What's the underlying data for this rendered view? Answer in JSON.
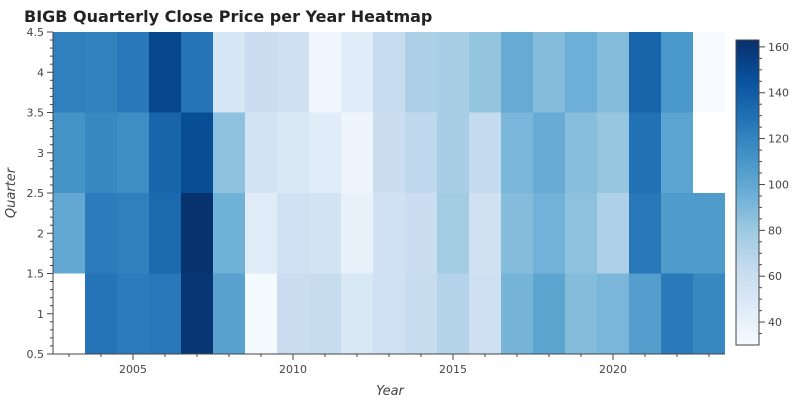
{
  "chart_data": {
    "type": "heatmap",
    "title": "BIGB Quarterly Close Price per Year Heatmap",
    "xlabel": "Year",
    "ylabel": "Quarter",
    "x": [
      2003,
      2004,
      2005,
      2006,
      2007,
      2008,
      2009,
      2010,
      2011,
      2012,
      2013,
      2014,
      2015,
      2016,
      2017,
      2018,
      2019,
      2020,
      2021,
      2022,
      2023
    ],
    "y": [
      1,
      2,
      3,
      4
    ],
    "values": [
      [
        null,
        128,
        124,
        126,
        160,
        104,
        31,
        60,
        62,
        50,
        57,
        62,
        70,
        58,
        93,
        102,
        88,
        92,
        106,
        125,
        118
      ],
      [
        100,
        124,
        122,
        134,
        162,
        95,
        46,
        57,
        55,
        40,
        57,
        60,
        78,
        56,
        88,
        94,
        85,
        73,
        126,
        108,
        108
      ],
      [
        112,
        118,
        115,
        136,
        148,
        85,
        55,
        50,
        45,
        36,
        60,
        66,
        76,
        64,
        92,
        98,
        87,
        82,
        130,
        103,
        null
      ],
      [
        122,
        121,
        126,
        152,
        128,
        52,
        60,
        58,
        35,
        45,
        63,
        74,
        76,
        83,
        98,
        88,
        96,
        88,
        136,
        110,
        30
      ]
    ],
    "xlim": [
      2002.5,
      2023.5
    ],
    "ylim": [
      0.5,
      4.5
    ],
    "x_ticks": [
      2005,
      2010,
      2015,
      2020
    ],
    "y_ticks": [
      0.5,
      1,
      1.5,
      2,
      2.5,
      3,
      3.5,
      4,
      4.5
    ],
    "y_tick_labels": [
      "0.5",
      "1",
      "1.5",
      "2",
      "2.5",
      "3",
      "3.5",
      "4",
      "4.5"
    ],
    "colorbar": {
      "min": 30,
      "max": 163,
      "ticks": [
        40,
        60,
        80,
        100,
        120,
        140,
        160
      ],
      "colors": [
        "#f7fbff",
        "#deebf7",
        "#c6dbef",
        "#9ecae1",
        "#6baed6",
        "#4292c6",
        "#2171b5",
        "#08519c",
        "#08306b"
      ]
    },
    "grid": false
  }
}
